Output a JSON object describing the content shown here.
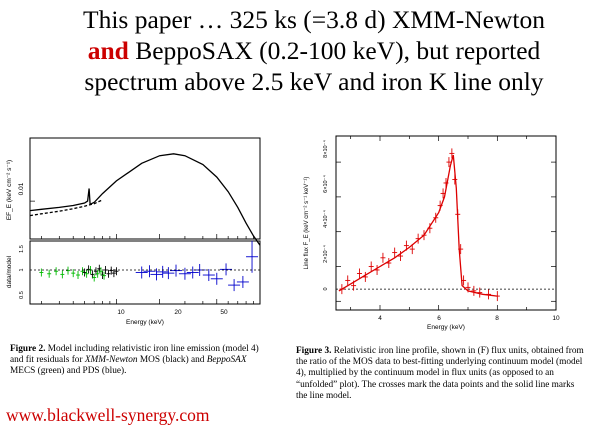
{
  "slide": {
    "title_line1_pre": "This paper … 325 ks (=3.8 d) XMM-Newton",
    "title_line2_bold": "and",
    "title_line2_rest": " BeppoSAX (0.2-100 keV), but reported",
    "title_line3": "spectrum above 2.5 keV and iron K line only",
    "link": "www.blackwell-synergy.com"
  },
  "figure2": {
    "top_panel": {
      "ylabel": "EF_E (keV cm⁻² s⁻¹)",
      "ytick": "0.01"
    },
    "bottom_panel": {
      "ylabel": "data/model",
      "yticks": [
        "1.5",
        "1",
        "0.5"
      ],
      "xlabel": "Energy (keV)",
      "xticks": [
        "10",
        "20",
        "50"
      ]
    },
    "caption": {
      "label": "Figure 2.",
      "text_a": " Model including relativistic iron line emission (model 4) and fit residuals for ",
      "em1": "XMM-Newton",
      "text_b": " MOS (black) and ",
      "em2": "BeppoSAX",
      "text_c": " MECS (green) and PDS (blue)."
    }
  },
  "figure3": {
    "ylabel": "Line flux F_E (keV cm⁻² s⁻¹ keV⁻¹)",
    "yticks": [
      "0",
      "2×10⁻⁴",
      "4×10⁻⁴",
      "6×10⁻⁴",
      "8×10⁻⁴"
    ],
    "xlabel": "Energy (keV)",
    "xticks": [
      "4",
      "6",
      "8",
      "10"
    ],
    "caption": {
      "label": "Figure 3.",
      "text": " Relativistic iron line profile, shown in (F) flux units, obtained from the ratio of the MOS data to best-fitting underlying continuum model (model 4), multiplied by the continuum model in flux units (as opposed to an “unfolded” plot). The crosses mark the data points and the solid line marks the line model."
    }
  },
  "chart_data": [
    {
      "type": "line",
      "panel": "figure2-top",
      "xscale": "log",
      "xlim": [
        2.5,
        100
      ],
      "ylim": [
        0.004,
        0.02
      ],
      "series": [
        {
          "style": "solid",
          "x": [
            2.5,
            3,
            4,
            5,
            6,
            6.3,
            6.45,
            6.55,
            7,
            8,
            10,
            15,
            20,
            25,
            30,
            40,
            50,
            60,
            70,
            80,
            90,
            100
          ],
          "y": [
            0.0085,
            0.0087,
            0.009,
            0.0093,
            0.0097,
            0.01,
            0.012,
            0.0095,
            0.0098,
            0.0112,
            0.0132,
            0.016,
            0.0172,
            0.0175,
            0.0172,
            0.0158,
            0.0138,
            0.0115,
            0.009,
            0.0065,
            0.0045,
            0.003
          ]
        },
        {
          "style": "dashed",
          "x": [
            2.5,
            3,
            4,
            5,
            6,
            7,
            8
          ],
          "y": [
            0.0077,
            0.008,
            0.0084,
            0.0088,
            0.0092,
            0.0096,
            0.0102
          ]
        }
      ]
    },
    {
      "type": "scatter",
      "panel": "figure2-bottom",
      "xscale": "log",
      "xlim": [
        2.5,
        100
      ],
      "ylim": [
        0.5,
        1.5
      ],
      "series": [
        {
          "color": "#000000",
          "x": [
            6.0,
            6.4,
            6.8,
            7.2,
            7.6,
            8.0,
            8.4,
            8.8,
            9.2,
            9.6,
            10.0
          ],
          "y": [
            1.0,
            1.05,
            0.97,
            1.02,
            1.06,
            0.96,
            1.04,
            0.98,
            1.03,
            0.99,
            1.02
          ]
        },
        {
          "color": "#00bb00",
          "x": [
            3.0,
            3.4,
            3.8,
            4.2,
            4.6,
            5.0,
            5.4,
            5.8,
            6.2,
            6.6,
            7.0,
            7.4,
            7.8,
            8.2
          ],
          "y": [
            1.0,
            0.98,
            1.02,
            0.97,
            1.03,
            0.99,
            0.96,
            1.02,
            0.98,
            1.04,
            0.92,
            0.98,
            1.02,
            0.95
          ]
        },
        {
          "color": "#0000cc",
          "x": [
            15,
            17,
            19,
            21,
            23,
            26,
            30,
            34,
            38,
            44,
            50,
            58,
            66,
            76,
            88
          ],
          "y": [
            1.0,
            1.02,
            0.97,
            1.01,
            0.99,
            1.03,
            0.98,
            1.0,
            1.04,
            0.96,
            0.9,
            1.05,
            0.8,
            0.85,
            1.25
          ]
        }
      ]
    },
    {
      "type": "scatter",
      "panel": "figure3",
      "xlim": [
        2.5,
        10
      ],
      "ylim": [
        -5e-05,
        0.00095
      ],
      "points_x": [
        2.7,
        2.9,
        3.1,
        3.3,
        3.5,
        3.7,
        3.9,
        4.1,
        4.3,
        4.5,
        4.7,
        4.9,
        5.1,
        5.3,
        5.5,
        5.7,
        5.9,
        6.05,
        6.15,
        6.25,
        6.35,
        6.45,
        6.55,
        6.65,
        6.75,
        6.85,
        7.0,
        7.2,
        7.4,
        7.7,
        8.0
      ],
      "points_y": [
        7e-05,
        0.00012,
        9e-05,
        0.00016,
        0.00014,
        0.0002,
        0.00018,
        0.00025,
        0.00022,
        0.00028,
        0.00026,
        0.00032,
        0.0003,
        0.00036,
        0.00038,
        0.00042,
        0.00048,
        0.00055,
        0.00062,
        0.00068,
        0.0008,
        0.00085,
        0.0007,
        0.0005,
        0.0003,
        0.00012,
        8e-05,
        6e-05,
        5e-05,
        4e-05,
        3e-05
      ],
      "model_x": [
        2.6,
        3.0,
        3.5,
        4.0,
        4.5,
        5.0,
        5.5,
        6.0,
        6.2,
        6.4,
        6.5,
        6.6,
        6.7,
        6.8,
        7.0,
        7.5,
        8.0
      ],
      "model_y": [
        6e-05,
        0.0001,
        0.00015,
        0.0002,
        0.00025,
        0.00031,
        0.00038,
        0.00051,
        0.0006,
        0.00078,
        0.00084,
        0.00065,
        0.0003,
        9e-05,
        6e-05,
        4e-05,
        3e-05
      ]
    }
  ]
}
